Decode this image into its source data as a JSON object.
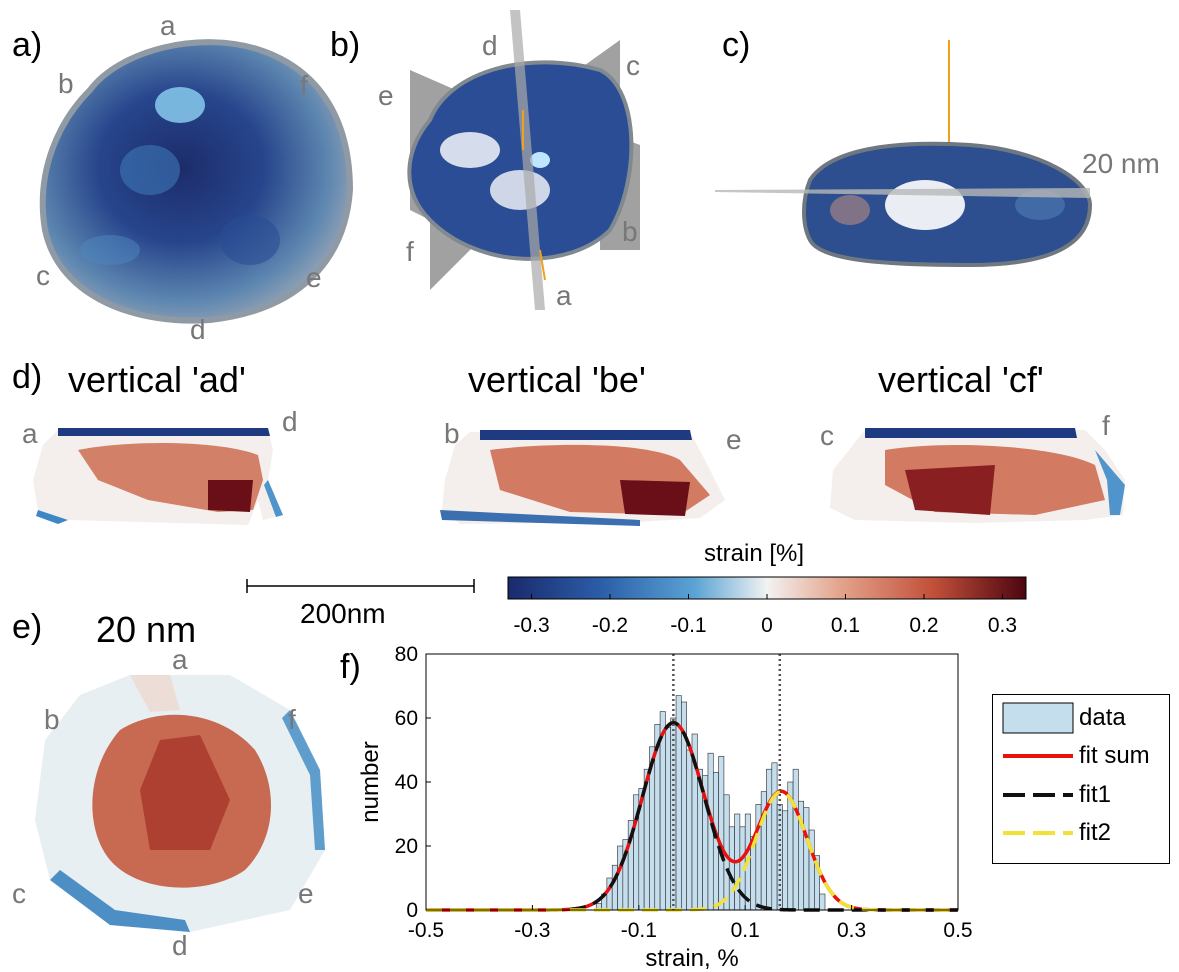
{
  "panels": {
    "a": {
      "label": "a)",
      "markers": {
        "a": "a",
        "b": "b",
        "c": "c",
        "d": "d",
        "e": "e",
        "f": "f"
      }
    },
    "b": {
      "label": "b)",
      "markers": {
        "a": "a",
        "b": "b",
        "c": "c",
        "d": "d",
        "e": "e",
        "f": "f"
      }
    },
    "c": {
      "label": "c)",
      "size_label": "20 nm"
    },
    "d": {
      "label": "d)",
      "sections": [
        {
          "title": "vertical 'ad'",
          "left": "a",
          "right": "d"
        },
        {
          "title": "vertical 'be'",
          "left": "b",
          "right": "e"
        },
        {
          "title": "vertical 'cf'",
          "left": "c",
          "right": "f"
        }
      ],
      "scalebar_label": "200nm"
    },
    "e": {
      "label": "e)",
      "title": "20 nm",
      "markers": {
        "a": "a",
        "b": "b",
        "c": "c",
        "d": "d",
        "e": "e",
        "f": "f"
      }
    },
    "f": {
      "label": "f)"
    }
  },
  "colorbar": {
    "title": "strain [%]",
    "ticks": [
      "-0.3",
      "-0.2",
      "-0.1",
      "0",
      "0.1",
      "0.2",
      "0.3"
    ],
    "range": [
      -0.33,
      0.33
    ],
    "colors": [
      "#1a2a6c",
      "#2b5ea8",
      "#5aa3d4",
      "#f2f2f2",
      "#e4a48c",
      "#c2503a",
      "#4d0510"
    ]
  },
  "chart_data": {
    "type": "bar",
    "xlabel": "strain, %",
    "ylabel": "number",
    "xlim": [
      -0.5,
      0.5
    ],
    "ylim": [
      0,
      80
    ],
    "xticks": [
      "-0.5",
      "-0.3",
      "-0.1",
      "0.1",
      "0.3",
      "0.5"
    ],
    "yticks": [
      "0",
      "20",
      "40",
      "60",
      "80"
    ],
    "bin_width": 0.01,
    "bin_centers": [
      -0.175,
      -0.165,
      -0.155,
      -0.145,
      -0.135,
      -0.125,
      -0.115,
      -0.105,
      -0.095,
      -0.085,
      -0.075,
      -0.065,
      -0.055,
      -0.045,
      -0.035,
      -0.025,
      -0.015,
      -0.005,
      0.005,
      0.015,
      0.025,
      0.035,
      0.045,
      0.055,
      0.065,
      0.075,
      0.085,
      0.095,
      0.105,
      0.115,
      0.125,
      0.135,
      0.145,
      0.155,
      0.165,
      0.175,
      0.185,
      0.195,
      0.205,
      0.215,
      0.225,
      0.235,
      0.245
    ],
    "counts": [
      2,
      5,
      10,
      14,
      20,
      22,
      28,
      36,
      38,
      44,
      51,
      58,
      62,
      57,
      60,
      67,
      65,
      50,
      55,
      44,
      42,
      49,
      43,
      48,
      36,
      26,
      30,
      26,
      30,
      23,
      33,
      37,
      44,
      46,
      33,
      31,
      40,
      44,
      34,
      32,
      25,
      17,
      5
    ],
    "vlines": [
      -0.035,
      0.165
    ],
    "fits": {
      "fit1": {
        "amplitude": 58.5,
        "center": -0.035,
        "sigma": 0.058
      },
      "fit2": {
        "amplitude": 37,
        "center": 0.168,
        "sigma": 0.048
      }
    },
    "legend": {
      "placement": "right",
      "items": [
        "data",
        "fit sum",
        "fit1",
        "fit2"
      ]
    },
    "colors": {
      "data": "#c5deee",
      "fit_sum": "#e8110e",
      "fit1": "#111111",
      "fit2": "#f2e233",
      "vline": "#555555"
    }
  }
}
